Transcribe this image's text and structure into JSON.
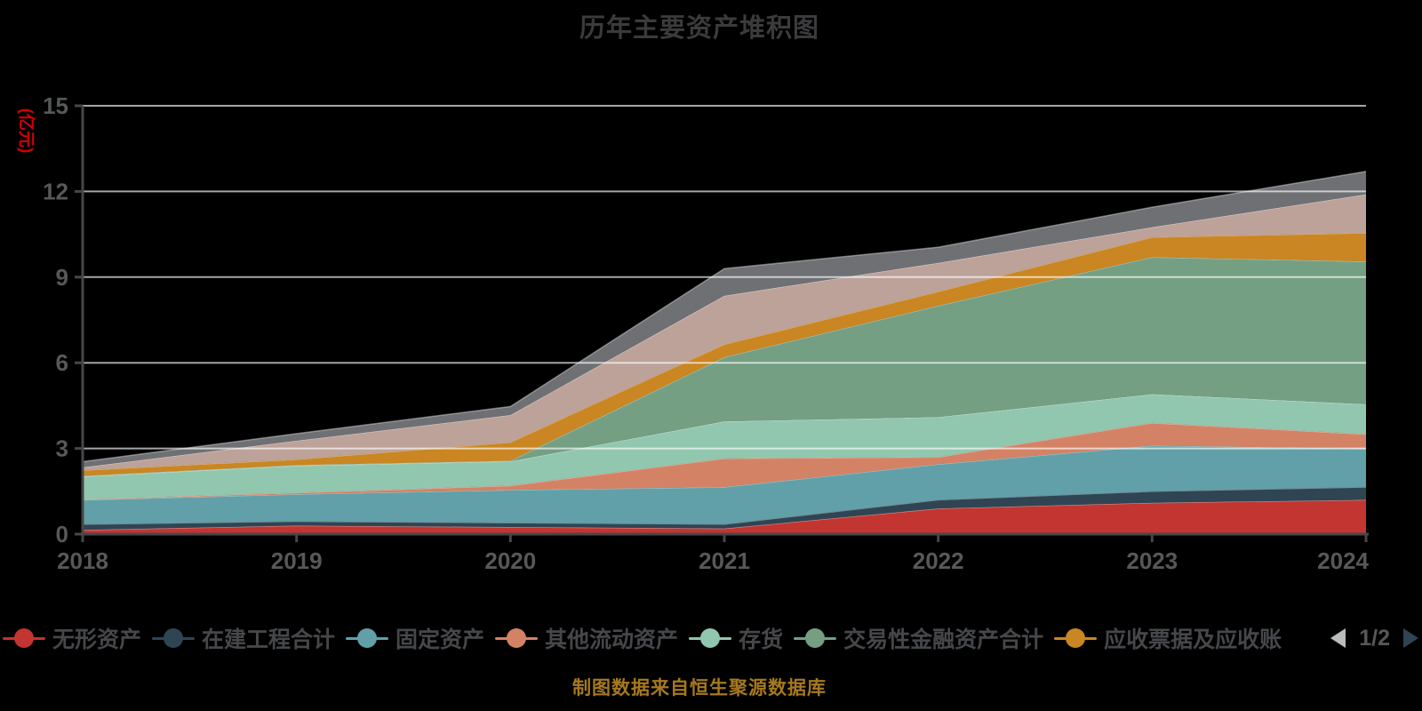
{
  "title": "历年主要资产堆积图",
  "footer": "制图数据来自恒生聚源数据库",
  "y_axis": {
    "name": "(亿元)",
    "name_color": "#d40000",
    "ticks": [
      0,
      3,
      6,
      9,
      12,
      15
    ],
    "tick_labels": [
      "0",
      "3",
      "6",
      "9",
      "12",
      "15"
    ]
  },
  "x_axis": {
    "categories": [
      "2018",
      "2019",
      "2020",
      "2021",
      "2022",
      "2023",
      "2024"
    ]
  },
  "legend": {
    "items": [
      {
        "label": "无形资产",
        "color": "#c23531"
      },
      {
        "label": "在建工程合计",
        "color": "#2f4554"
      },
      {
        "label": "固定资产",
        "color": "#61a0a8"
      },
      {
        "label": "其他流动资产",
        "color": "#d48265"
      },
      {
        "label": "存货",
        "color": "#91c7ae"
      },
      {
        "label": "交易性金融资产合计",
        "color": "#749f83"
      },
      {
        "label": "应收票据及应收账",
        "color": "#ca8622"
      }
    ],
    "pagination": {
      "label": "1/2"
    }
  },
  "chart_data": {
    "type": "area",
    "stacked": true,
    "title": "历年主要资产堆积图",
    "ylabel": "(亿元)",
    "ylim": [
      0,
      15
    ],
    "grid": true,
    "legend_position": "bottom",
    "x": [
      "2018",
      "2019",
      "2020",
      "2021",
      "2022",
      "2023",
      "2024"
    ],
    "series": [
      {
        "name": "无形资产",
        "color": "#c23531",
        "legend_page": 1,
        "values": [
          0.15,
          0.3,
          0.25,
          0.2,
          0.9,
          1.1,
          1.2
        ]
      },
      {
        "name": "在建工程合计",
        "color": "#2f4554",
        "legend_page": 1,
        "values": [
          0.2,
          0.15,
          0.15,
          0.15,
          0.3,
          0.4,
          0.45
        ]
      },
      {
        "name": "固定资产",
        "color": "#61a0a8",
        "legend_page": 1,
        "values": [
          0.85,
          0.95,
          1.15,
          1.3,
          1.25,
          1.6,
          1.35
        ]
      },
      {
        "name": "其他流动资产",
        "color": "#d48265",
        "legend_page": 1,
        "values": [
          0.02,
          0.05,
          0.15,
          1.0,
          0.25,
          0.8,
          0.5
        ]
      },
      {
        "name": "存货",
        "color": "#91c7ae",
        "legend_page": 1,
        "values": [
          0.8,
          0.95,
          0.85,
          1.3,
          1.4,
          1.0,
          1.05
        ]
      },
      {
        "name": "交易性金融资产合计",
        "color": "#749f83",
        "legend_page": 1,
        "values": [
          0.02,
          0.02,
          0.02,
          2.25,
          3.9,
          4.8,
          5.0
        ]
      },
      {
        "name": "应收票据及应收账",
        "color": "#ca8622",
        "legend_page": 1,
        "values": [
          0.2,
          0.2,
          0.65,
          0.45,
          0.5,
          0.7,
          1.0
        ]
      },
      {
        "name": "",
        "color": "#bda29a",
        "legend_page": 2,
        "values": [
          0.1,
          0.65,
          0.95,
          1.7,
          1.0,
          0.35,
          1.35
        ]
      },
      {
        "name": "",
        "color": "#6e7074",
        "legend_page": 2,
        "values": [
          0.2,
          0.25,
          0.3,
          0.95,
          0.55,
          0.7,
          0.8
        ]
      }
    ]
  }
}
